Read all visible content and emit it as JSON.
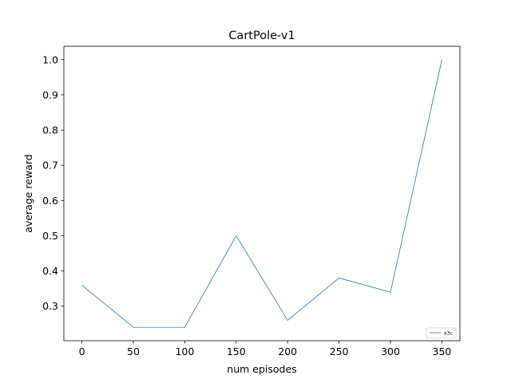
{
  "chart_data": {
    "type": "line",
    "title": "CartPole-v1",
    "xlabel": "num episodes",
    "ylabel": "average reward",
    "x": [
      0,
      50,
      100,
      150,
      200,
      250,
      300,
      350
    ],
    "series": [
      {
        "name": "a3c",
        "values": [
          0.36,
          0.24,
          0.24,
          0.5,
          0.26,
          0.38,
          0.34,
          1.0
        ],
        "color": "#1f77b4"
      }
    ],
    "xlim": [
      -17.5,
      367.5
    ],
    "ylim": [
      0.202,
      1.038
    ],
    "xticks": [
      "0",
      "50",
      "100",
      "150",
      "200",
      "250",
      "300",
      "350"
    ],
    "yticks": [
      "0.3",
      "0.4",
      "0.5",
      "0.6",
      "0.7",
      "0.8",
      "0.9",
      "1.0"
    ],
    "grid": false,
    "legend_position": "lower-right"
  }
}
